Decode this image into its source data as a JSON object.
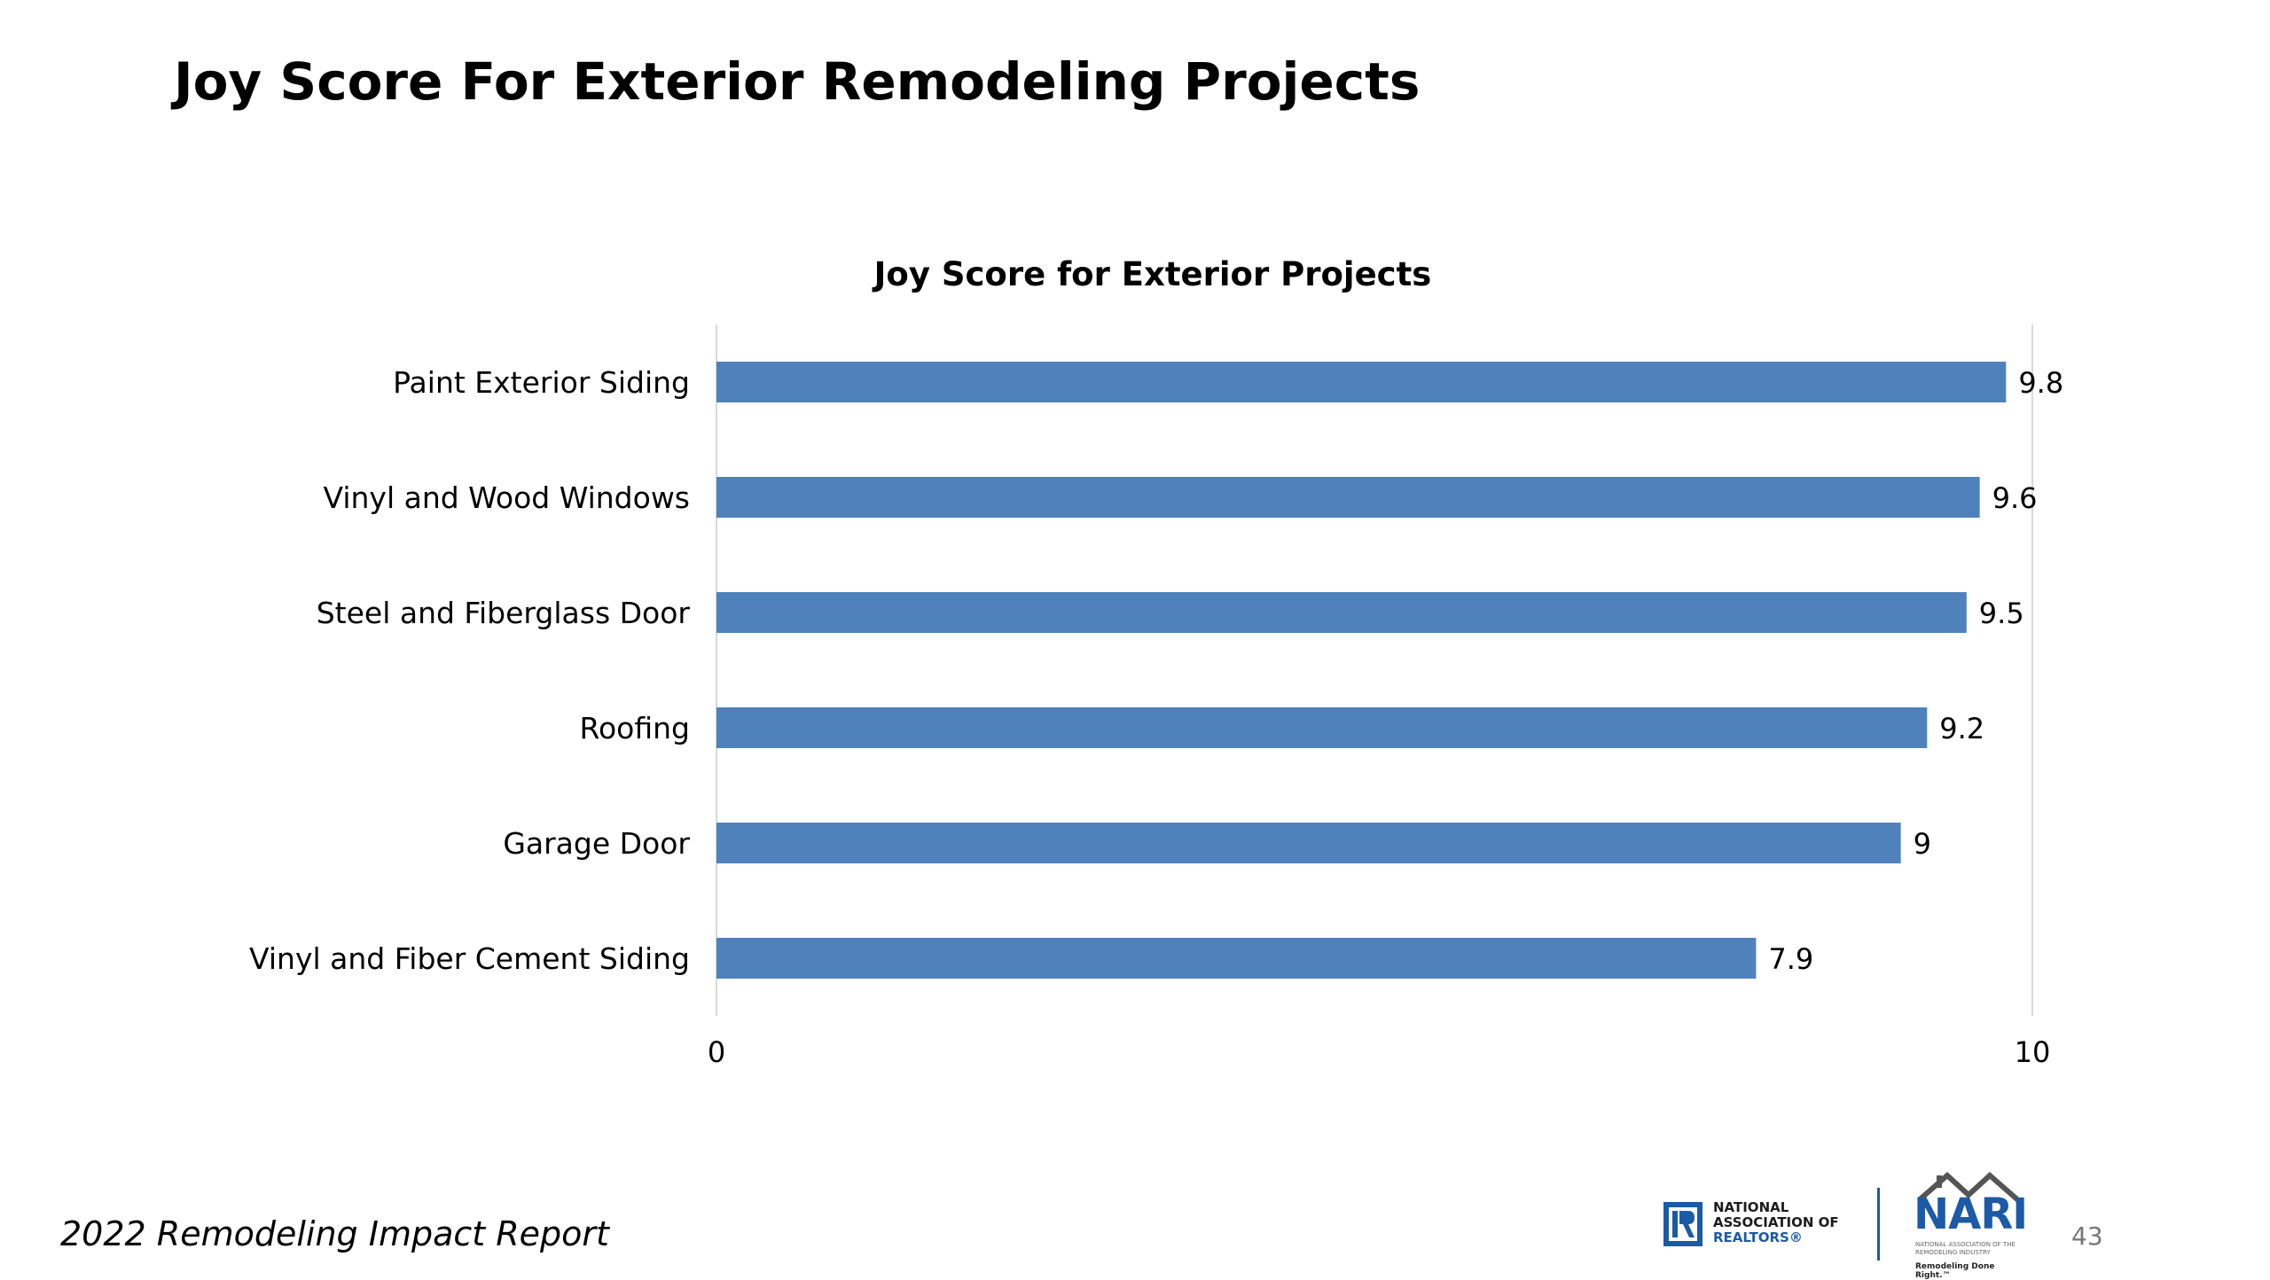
{
  "page": {
    "title": "Joy Score For Exterior Remodeling Projects",
    "footer": "2022 Remodeling Impact Report",
    "page_number": "43"
  },
  "logos": {
    "nar_text": [
      "NATIONAL",
      "ASSOCIATION OF",
      "REALTORS®"
    ],
    "nari_word": "NARI",
    "nari_subtitle": "NATIONAL ASSOCIATION OF THE REMODELING INDUSTRY",
    "nari_tagline": "Remodeling Done Right.™"
  },
  "colors": {
    "bar": "#4f81bd",
    "axis": "#d9d9d9",
    "text": "#000000",
    "brand_blue": "#1b5aa6"
  },
  "chart_data": {
    "type": "bar",
    "orientation": "horizontal",
    "title": "Joy Score for Exterior Projects",
    "categories": [
      "Paint Exterior Siding",
      "Vinyl and Wood Windows",
      "Steel and Fiberglass Door",
      "Roofing",
      "Garage Door",
      "Vinyl and Fiber Cement Siding"
    ],
    "values": [
      9.8,
      9.6,
      9.5,
      9.2,
      9,
      7.9
    ],
    "data_labels": [
      "9.8",
      "9.6",
      "9.5",
      "9.2",
      "9",
      "7.9"
    ],
    "xlim": [
      0,
      10
    ],
    "x_ticks": [
      "0",
      "10"
    ],
    "xlabel": "",
    "ylabel": "",
    "grid": false,
    "legend": "none"
  }
}
